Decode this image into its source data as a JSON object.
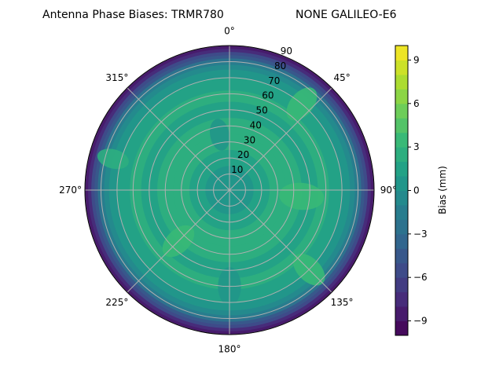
{
  "chart_data": {
    "type": "heatmap",
    "subtype": "polar-contour",
    "title_left": "Antenna Phase Biases: TRMR780",
    "title_right": "NONE GALILEO-E6",
    "angular_ticks": [
      "0°",
      "45°",
      "90°",
      "135°",
      "180°",
      "225°",
      "270°",
      "315°"
    ],
    "radial_ticks": [
      "10",
      "20",
      "30",
      "40",
      "50",
      "60",
      "70",
      "80",
      "90"
    ],
    "radial_range": [
      0,
      90
    ],
    "colorbar": {
      "label": "Bias (mm)",
      "range": [
        -10,
        10
      ],
      "levels_step": 1,
      "ticks": [
        "−9",
        "−6",
        "−3",
        "0",
        "3",
        "6",
        "9"
      ],
      "tick_values": [
        -9,
        -6,
        -3,
        0,
        3,
        6,
        9
      ],
      "colormap": "viridis"
    },
    "radial_profile": {
      "zenith": [
        90,
        88,
        86,
        84,
        82,
        80,
        78,
        75,
        70,
        62,
        55,
        45,
        35,
        25,
        15
      ],
      "bias": [
        -8.5,
        -7.5,
        -6,
        -4.5,
        -3,
        -2,
        -1,
        0,
        1,
        2,
        1,
        2,
        2,
        1,
        0.5
      ]
    },
    "patches": [
      {
        "azimuth": 40,
        "zenith": 70,
        "size": 12,
        "bias": 3
      },
      {
        "azimuth": 95,
        "zenith": 45,
        "size": 14,
        "bias": 3
      },
      {
        "azimuth": 135,
        "zenith": 70,
        "size": 12,
        "bias": 3
      },
      {
        "azimuth": 225,
        "zenith": 45,
        "size": 12,
        "bias": 3
      },
      {
        "azimuth": 285,
        "zenith": 75,
        "size": 10,
        "bias": 2.5
      },
      {
        "azimuth": 350,
        "zenith": 35,
        "size": 10,
        "bias": 0.5
      },
      {
        "azimuth": 180,
        "zenith": 60,
        "size": 12,
        "bias": 0.5
      },
      {
        "azimuth": 0,
        "zenith": 0,
        "size": 12,
        "bias": 0.5
      }
    ]
  }
}
